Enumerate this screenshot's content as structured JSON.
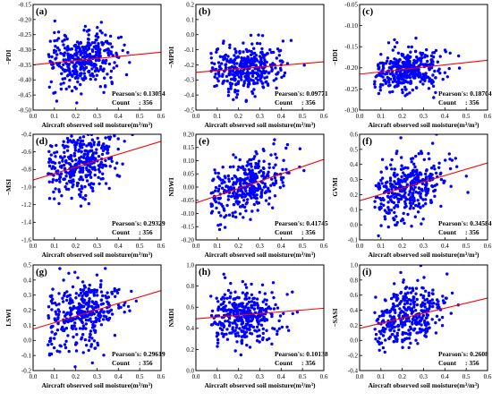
{
  "chart_data": [
    {
      "panel_label": "(a)",
      "type": "scatter",
      "xlabel": "Aircraft observed soil moisture(m³/m³)",
      "ylabel": "−PDI",
      "xlim": [
        0,
        0.6
      ],
      "ylim": [
        -0.5,
        -0.15
      ],
      "xticks": [
        0,
        0.1,
        0.2,
        0.3,
        0.4,
        0.5,
        0.6
      ],
      "yticks": [
        -0.5,
        -0.45,
        -0.4,
        -0.35,
        -0.3,
        -0.25,
        -0.2,
        -0.15
      ],
      "xtick_labels": [
        "0.0",
        "0.1",
        "0.2",
        "0.3",
        "0.4",
        "0.5",
        "0.6"
      ],
      "ytick_labels": [
        "-0.50",
        "-0.45",
        "-0.40",
        "-0.35",
        "-0.30",
        "-0.25",
        "-0.20",
        "-0.15"
      ],
      "pearson_label": "Pearson's",
      "pearson": "0.13054",
      "count_label": "Count",
      "count": "356",
      "fit_line": [
        [
          0,
          -0.35
        ],
        [
          0.6,
          -0.308
        ]
      ],
      "x_center": 0.23,
      "x_spread": 0.085,
      "y_center": -0.335,
      "y_spread": 0.045,
      "r": 0.13,
      "seed": 11
    },
    {
      "panel_label": "(b)",
      "type": "scatter",
      "xlabel": "Aircraft observed soil moisture(m³/m³)",
      "ylabel": "−MPDI",
      "xlim": [
        0,
        0.6
      ],
      "ylim": [
        -0.5,
        0.2
      ],
      "xticks": [
        0,
        0.1,
        0.2,
        0.3,
        0.4,
        0.5,
        0.6
      ],
      "yticks": [
        -0.5,
        -0.4,
        -0.3,
        -0.2,
        -0.1,
        0,
        0.1,
        0.2
      ],
      "xtick_labels": [
        "0.0",
        "0.1",
        "0.2",
        "0.3",
        "0.4",
        "0.5",
        "0.6"
      ],
      "ytick_labels": [
        "-0.5",
        "-0.4",
        "-0.3",
        "-0.2",
        "-0.1",
        "0.0",
        "0.1",
        "0.2"
      ],
      "pearson_label": "Pearson's",
      "pearson": "0.09771",
      "count_label": "Count",
      "count": "356",
      "fit_line": [
        [
          0,
          -0.25
        ],
        [
          0.6,
          -0.18
        ]
      ],
      "x_center": 0.23,
      "x_spread": 0.085,
      "y_center": -0.225,
      "y_spread": 0.08,
      "r": 0.1,
      "seed": 23
    },
    {
      "panel_label": "(c)",
      "type": "scatter",
      "xlabel": "Aircraft observed soil moisture(m³/m³)",
      "ylabel": "−DDI",
      "xlim": [
        0,
        0.6
      ],
      "ylim": [
        -0.3,
        -0.05
      ],
      "xticks": [
        0,
        0.1,
        0.2,
        0.3,
        0.4,
        0.5,
        0.6
      ],
      "yticks": [
        -0.3,
        -0.25,
        -0.2,
        -0.15,
        -0.1,
        -0.05
      ],
      "xtick_labels": [
        "0.0",
        "0.1",
        "0.2",
        "0.3",
        "0.4",
        "0.5",
        "0.6"
      ],
      "ytick_labels": [
        "-0.30",
        "-0.25",
        "-0.20",
        "-0.15",
        "-0.10",
        "-0.05"
      ],
      "pearson_label": "Pearson's",
      "pearson": "0.18704",
      "count_label": "Count",
      "count": "356",
      "fit_line": [
        [
          0,
          -0.215
        ],
        [
          0.6,
          -0.182
        ]
      ],
      "x_center": 0.23,
      "x_spread": 0.085,
      "y_center": -0.205,
      "y_spread": 0.025,
      "r": 0.19,
      "seed": 37
    },
    {
      "panel_label": "(d)",
      "type": "scatter",
      "xlabel": "Aircraft observed soil moisture(m³/m³)",
      "ylabel": "−MSI",
      "xlim": [
        0,
        0.6
      ],
      "ylim": [
        -1.6,
        -0.4
      ],
      "xticks": [
        0,
        0.1,
        0.2,
        0.3,
        0.4,
        0.5,
        0.6
      ],
      "yticks": [
        -1.6,
        -1.4,
        -1.2,
        -1.0,
        -0.8,
        -0.6,
        -0.4
      ],
      "xtick_labels": [
        "0.0",
        "0.1",
        "0.2",
        "0.3",
        "0.4",
        "0.5",
        "0.6"
      ],
      "ytick_labels": [
        "-1.6",
        "-1.4",
        "-1.2",
        "-1.0",
        "-0.8",
        "-0.6",
        "-0.4"
      ],
      "pearson_label": "Pearson's",
      "pearson": "0.29329",
      "count_label": "Count",
      "count": "356",
      "fit_line": [
        [
          0,
          -0.92
        ],
        [
          0.6,
          -0.48
        ]
      ],
      "x_center": 0.23,
      "x_spread": 0.085,
      "y_center": -0.72,
      "y_spread": 0.2,
      "r": 0.29,
      "seed": 41
    },
    {
      "panel_label": "(e)",
      "type": "scatter",
      "xlabel": "Aircraft observed soil moisture(m³/m³)",
      "ylabel": "NDWI",
      "xlim": [
        0,
        0.6
      ],
      "ylim": [
        -0.2,
        0.2
      ],
      "xticks": [
        0,
        0.1,
        0.2,
        0.3,
        0.4,
        0.5,
        0.6
      ],
      "yticks": [
        -0.2,
        -0.15,
        -0.1,
        -0.05,
        0,
        0.05,
        0.1,
        0.15,
        0.2
      ],
      "xtick_labels": [
        "0.0",
        "0.1",
        "0.2",
        "0.3",
        "0.4",
        "0.5",
        "0.6"
      ],
      "ytick_labels": [
        "-0.20",
        "-0.15",
        "-0.10",
        "-0.05",
        "0.00",
        "0.05",
        "0.10",
        "0.15",
        "0.20"
      ],
      "pearson_label": "Pearson's",
      "pearson": "0.41745",
      "count_label": "Count",
      "count": "356",
      "fit_line": [
        [
          0,
          -0.06
        ],
        [
          0.6,
          0.105
        ]
      ],
      "x_center": 0.23,
      "x_spread": 0.085,
      "y_center": 0.005,
      "y_spread": 0.055,
      "r": 0.42,
      "seed": 53
    },
    {
      "panel_label": "(f)",
      "type": "scatter",
      "xlabel": "Aircraft observed soil moisture(m³/m³)",
      "ylabel": "GVMI",
      "xlim": [
        0,
        0.6
      ],
      "ylim": [
        -0.1,
        0.6
      ],
      "xticks": [
        0,
        0.1,
        0.2,
        0.3,
        0.4,
        0.5,
        0.6
      ],
      "yticks": [
        -0.1,
        0,
        0.1,
        0.2,
        0.3,
        0.4,
        0.5,
        0.6
      ],
      "xtick_labels": [
        "0.0",
        "0.1",
        "0.2",
        "0.3",
        "0.4",
        "0.5",
        "0.6"
      ],
      "ytick_labels": [
        "-0.1",
        "0.0",
        "0.1",
        "0.2",
        "0.3",
        "0.4",
        "0.5",
        "0.6"
      ],
      "pearson_label": "Pearson's",
      "pearson": "0.34584",
      "count_label": "Count",
      "count": "356",
      "fit_line": [
        [
          0,
          0.16
        ],
        [
          0.6,
          0.41
        ]
      ],
      "x_center": 0.23,
      "x_spread": 0.085,
      "y_center": 0.25,
      "y_spread": 0.11,
      "r": 0.35,
      "seed": 67
    },
    {
      "panel_label": "(g)",
      "type": "scatter",
      "xlabel": "Aircraft observed soil moisture(m³/m³)",
      "ylabel": "LSWI",
      "xlim": [
        0,
        0.6
      ],
      "ylim": [
        -0.2,
        0.5
      ],
      "xticks": [
        0,
        0.1,
        0.2,
        0.3,
        0.4,
        0.5,
        0.6
      ],
      "yticks": [
        -0.2,
        -0.1,
        0,
        0.1,
        0.2,
        0.3,
        0.4,
        0.5
      ],
      "xtick_labels": [
        "0.0",
        "0.1",
        "0.2",
        "0.3",
        "0.4",
        "0.5",
        "0.6"
      ],
      "ytick_labels": [
        "-0.2",
        "-0.1",
        "0.0",
        "0.1",
        "0.2",
        "0.3",
        "0.4",
        "0.5"
      ],
      "pearson_label": "Pearson's",
      "pearson": "0.29619",
      "count_label": "Count",
      "count": "356",
      "fit_line": [
        [
          0,
          0.075
        ],
        [
          0.6,
          0.33
        ]
      ],
      "x_center": 0.23,
      "x_spread": 0.085,
      "y_center": 0.17,
      "y_spread": 0.12,
      "r": 0.3,
      "seed": 79
    },
    {
      "panel_label": "(h)",
      "type": "scatter",
      "xlabel": "Aircraft observed soil moisture(m³/m³)",
      "ylabel": "NMDI",
      "xlim": [
        0,
        0.6
      ],
      "ylim": [
        0,
        1.0
      ],
      "xticks": [
        0,
        0.1,
        0.2,
        0.3,
        0.4,
        0.5,
        0.6
      ],
      "yticks": [
        0,
        0.2,
        0.4,
        0.6,
        0.8,
        1.0
      ],
      "xtick_labels": [
        "0.0",
        "0.1",
        "0.2",
        "0.3",
        "0.4",
        "0.5",
        "0.6"
      ],
      "ytick_labels": [
        "0.0",
        "0.2",
        "0.4",
        "0.6",
        "0.8",
        "1.0"
      ],
      "pearson_label": "Pearson's",
      "pearson": "0.10138",
      "count_label": "Count",
      "count": "356",
      "fit_line": [
        [
          0,
          0.49
        ],
        [
          0.6,
          0.59
        ]
      ],
      "x_center": 0.23,
      "x_spread": 0.085,
      "y_center": 0.52,
      "y_spread": 0.13,
      "r": 0.1,
      "seed": 83
    },
    {
      "panel_label": "(i)",
      "type": "scatter",
      "xlabel": "Aircraft observed soil moisture(m³/m³)",
      "ylabel": "−SASI",
      "xlim": [
        0,
        0.6
      ],
      "ylim": [
        -0.4,
        1.0
      ],
      "xticks": [
        0,
        0.1,
        0.2,
        0.3,
        0.4,
        0.5,
        0.6
      ],
      "yticks": [
        -0.4,
        -0.2,
        0,
        0.2,
        0.4,
        0.6,
        0.8,
        1.0
      ],
      "xtick_labels": [
        "0.0",
        "0.1",
        "0.2",
        "0.3",
        "0.4",
        "0.5",
        "0.6"
      ],
      "ytick_labels": [
        "-0.4",
        "-0.2",
        "0.0",
        "0.2",
        "0.4",
        "0.6",
        "0.8",
        "1.0"
      ],
      "pearson_label": "Pearson's",
      "pearson": "0.2608",
      "count_label": "Count",
      "count": "356",
      "fit_line": [
        [
          0,
          0.16
        ],
        [
          0.6,
          0.56
        ]
      ],
      "x_center": 0.23,
      "x_spread": 0.085,
      "y_center": 0.32,
      "y_spread": 0.2,
      "r": 0.26,
      "seed": 97
    }
  ],
  "colors": {
    "points": "#0000ff",
    "fit_line": "#ff0000",
    "axes": "#000000",
    "background": "#ffffff"
  }
}
